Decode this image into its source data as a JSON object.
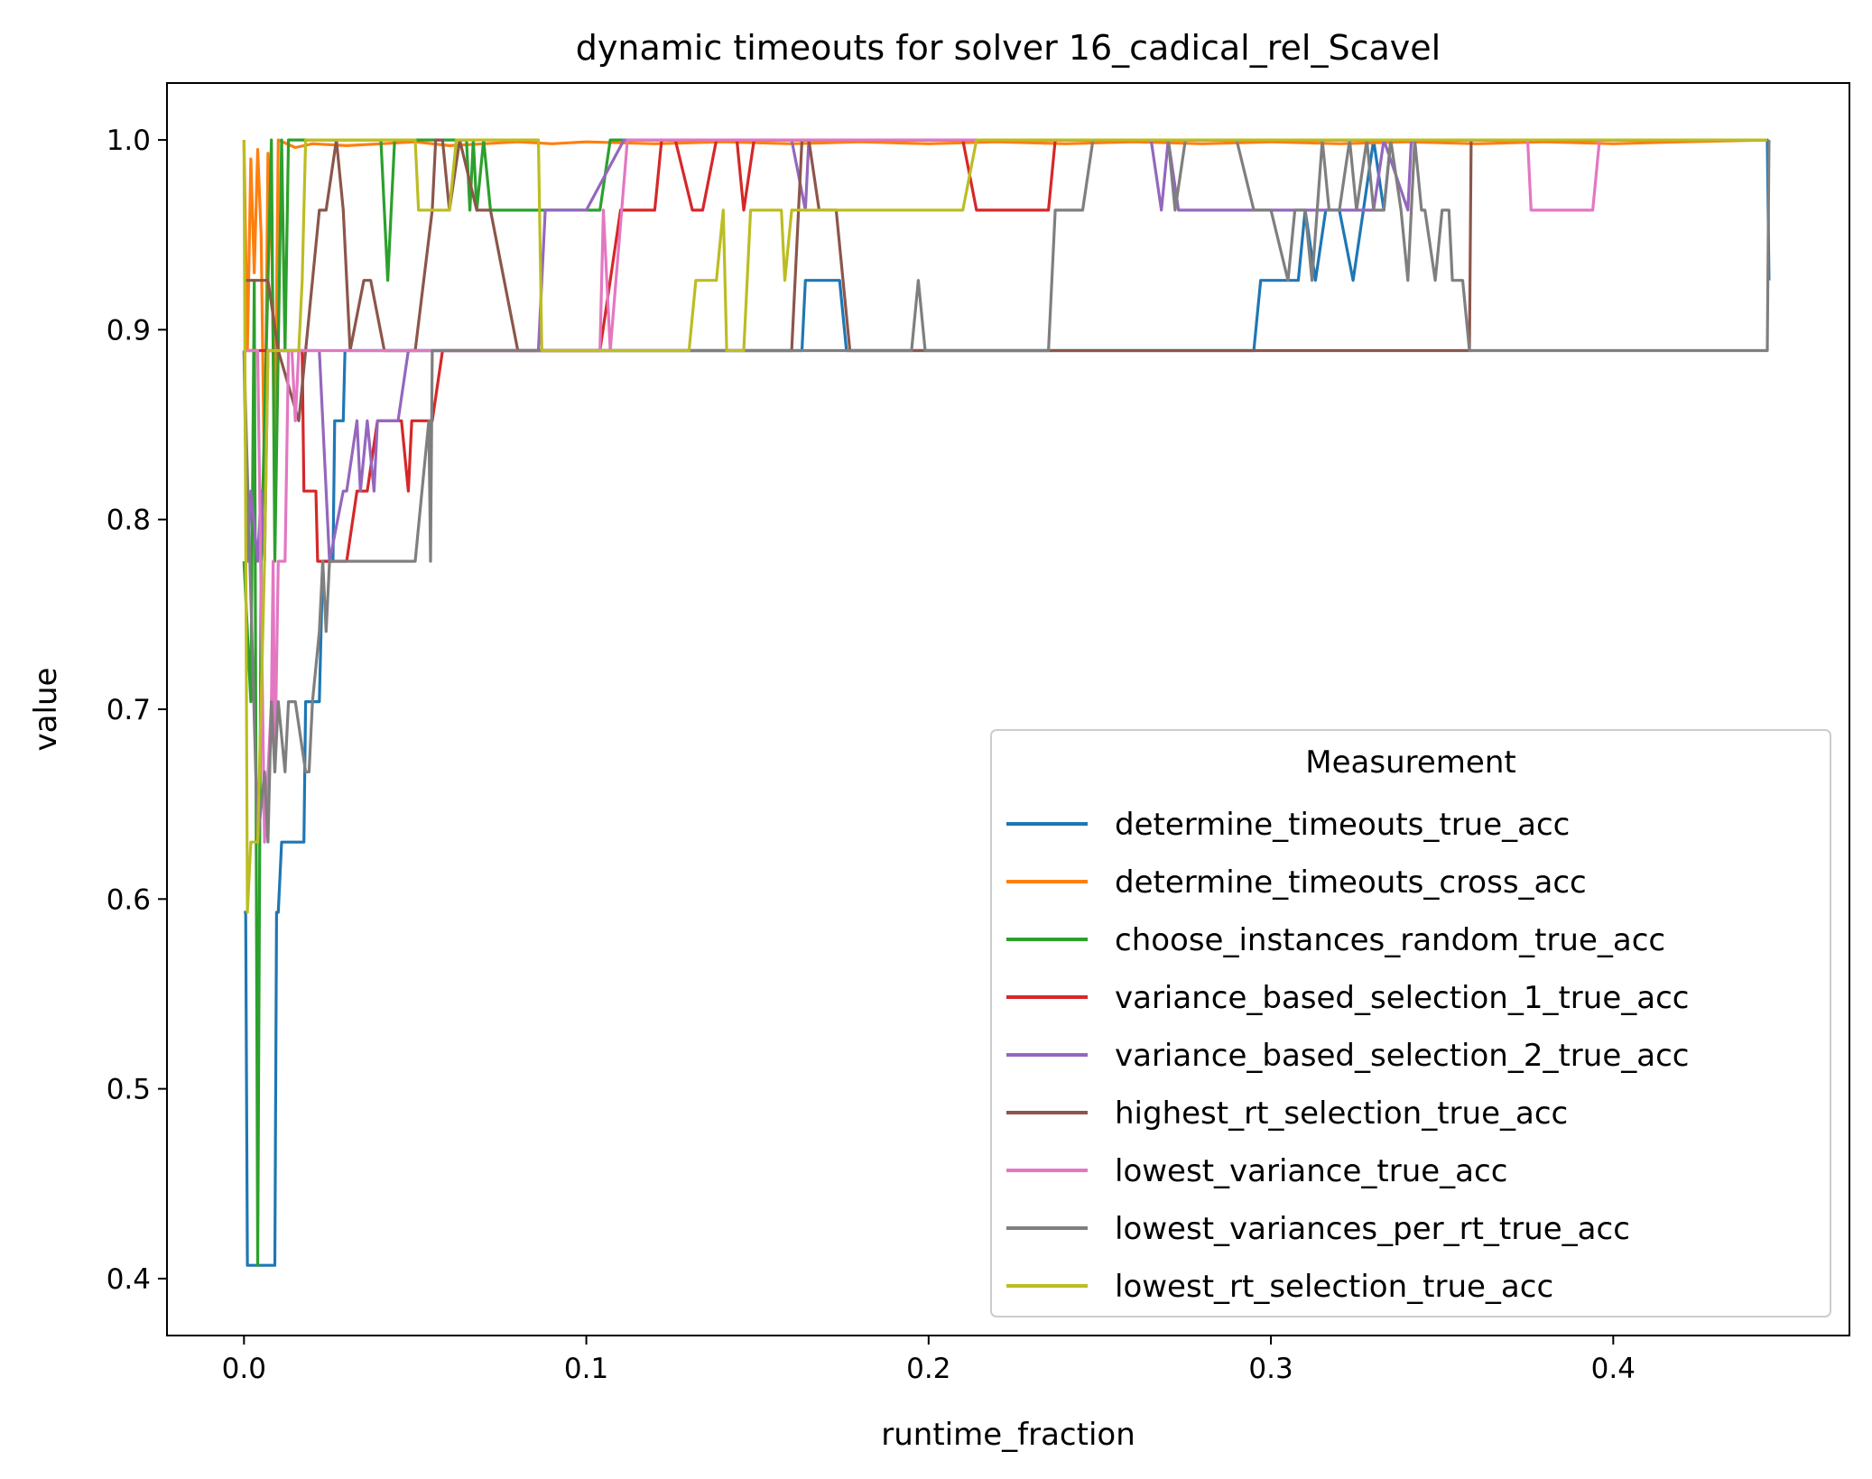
{
  "chart_data": {
    "type": "line",
    "title": "dynamic timeouts for solver 16_cadical_rel_Scavel",
    "xlabel": "runtime_fraction",
    "ylabel": "value",
    "xlim": [
      -0.0225,
      0.469
    ],
    "ylim": [
      0.37,
      1.03
    ],
    "xticks": [
      0.0,
      0.1,
      0.2,
      0.3,
      0.4
    ],
    "xtick_labels": [
      "0.0",
      "0.1",
      "0.2",
      "0.3",
      "0.4"
    ],
    "yticks": [
      0.4,
      0.5,
      0.6,
      0.7,
      0.8,
      0.9,
      1.0
    ],
    "ytick_labels": [
      "0.4",
      "0.5",
      "0.6",
      "0.7",
      "0.8",
      "0.9",
      "1.0"
    ],
    "grid": false,
    "legend": {
      "title": "Measurement",
      "position": "lower-right"
    },
    "series": [
      {
        "name": "determine_timeouts_true_acc",
        "color": "#1f77b4",
        "x": [
          0,
          0.0005,
          0.001,
          0.009,
          0.0095,
          0.01,
          0.011,
          0.017,
          0.0175,
          0.018,
          0.022,
          0.0225,
          0.023,
          0.026,
          0.0265,
          0.027,
          0.029,
          0.0295,
          0.03,
          0.058,
          0.163,
          0.164,
          0.17,
          0.174,
          0.176,
          0.295,
          0.297,
          0.3,
          0.308,
          0.31,
          0.313,
          0.316,
          0.32,
          0.324,
          0.327,
          0.33,
          0.333,
          0.335,
          0.337,
          0.445,
          0.4455
        ],
        "y": [
          0.593,
          0.593,
          0.407,
          0.407,
          0.593,
          0.593,
          0.63,
          0.63,
          0.63,
          0.704,
          0.704,
          0.741,
          0.778,
          0.778,
          0.852,
          0.852,
          0.852,
          0.889,
          0.889,
          0.889,
          0.889,
          0.926,
          0.926,
          0.926,
          0.889,
          0.889,
          0.926,
          0.926,
          0.926,
          0.963,
          0.926,
          0.963,
          0.963,
          0.926,
          0.963,
          1.0,
          0.963,
          1.0,
          1.0,
          1.0,
          0.926
        ]
      },
      {
        "name": "determine_timeouts_cross_acc",
        "color": "#ff7f0e",
        "x": [
          0,
          0.001,
          0.002,
          0.003,
          0.004,
          0.005,
          0.006,
          0.007,
          0.008,
          0.009,
          0.01,
          0.015,
          0.02,
          0.03,
          0.04,
          0.05,
          0.06,
          0.07,
          0.08,
          0.09,
          0.1,
          0.12,
          0.14,
          0.16,
          0.18,
          0.2,
          0.22,
          0.24,
          0.26,
          0.28,
          0.3,
          0.32,
          0.34,
          0.36,
          0.38,
          0.4,
          0.42,
          0.445
        ],
        "y": [
          1.0,
          0.889,
          0.99,
          0.93,
          0.995,
          0.95,
          0.815,
          0.993,
          0.96,
          0.83,
          1.0,
          0.996,
          0.998,
          0.997,
          0.998,
          0.999,
          0.997,
          0.998,
          0.999,
          0.998,
          0.999,
          0.998,
          0.999,
          0.998,
          0.999,
          0.998,
          0.999,
          0.998,
          0.999,
          0.998,
          0.999,
          0.998,
          0.999,
          0.998,
          0.999,
          0.998,
          0.999,
          1.0
        ]
      },
      {
        "name": "choose_instances_random_true_acc",
        "color": "#2ca02c",
        "x": [
          0,
          0.002,
          0.003,
          0.004,
          0.005,
          0.007,
          0.008,
          0.009,
          0.011,
          0.012,
          0.013,
          0.015,
          0.02,
          0.04,
          0.042,
          0.043,
          0.044,
          0.046,
          0.065,
          0.066,
          0.067,
          0.068,
          0.07,
          0.072,
          0.073,
          0.088,
          0.104,
          0.107,
          0.109,
          0.445
        ],
        "y": [
          0.778,
          0.704,
          0.926,
          0.407,
          0.778,
          0.926,
          1.0,
          0.778,
          1.0,
          0.889,
          1.0,
          1.0,
          1.0,
          1.0,
          0.926,
          0.963,
          1.0,
          1.0,
          1.0,
          0.963,
          1.0,
          0.963,
          1.0,
          0.963,
          0.963,
          0.963,
          0.963,
          1.0,
          1.0,
          1.0
        ]
      },
      {
        "name": "variance_based_selection_1_true_acc",
        "color": "#d62728",
        "x": [
          0,
          0.003,
          0.01,
          0.017,
          0.0175,
          0.021,
          0.0215,
          0.03,
          0.033,
          0.036,
          0.039,
          0.042,
          0.046,
          0.048,
          0.049,
          0.05,
          0.055,
          0.058,
          0.06,
          0.104,
          0.11,
          0.112,
          0.115,
          0.12,
          0.122,
          0.126,
          0.131,
          0.134,
          0.138,
          0.144,
          0.146,
          0.149,
          0.15,
          0.21,
          0.214,
          0.216,
          0.235,
          0.237,
          0.4,
          0.445
        ],
        "y": [
          0.889,
          0.889,
          0.889,
          0.889,
          0.815,
          0.815,
          0.778,
          0.778,
          0.815,
          0.815,
          0.852,
          0.852,
          0.852,
          0.815,
          0.852,
          0.852,
          0.852,
          0.889,
          0.889,
          0.889,
          0.963,
          0.963,
          0.963,
          0.963,
          1.0,
          1.0,
          0.963,
          0.963,
          1.0,
          1.0,
          0.963,
          1.0,
          1.0,
          1.0,
          0.963,
          0.963,
          0.963,
          1.0,
          1.0,
          1.0
        ]
      },
      {
        "name": "variance_based_selection_2_true_acc",
        "color": "#9467bd",
        "x": [
          0,
          0.001,
          0.002,
          0.004,
          0.005,
          0.006,
          0.007,
          0.022,
          0.025,
          0.029,
          0.03,
          0.033,
          0.034,
          0.036,
          0.038,
          0.039,
          0.043,
          0.045,
          0.048,
          0.052,
          0.086,
          0.088,
          0.1,
          0.111,
          0.16,
          0.164,
          0.165,
          0.167,
          0.168,
          0.19,
          0.191,
          0.265,
          0.268,
          0.27,
          0.273,
          0.275,
          0.33,
          0.333,
          0.34,
          0.341,
          0.343,
          0.445
        ],
        "y": [
          0.889,
          0.778,
          0.815,
          0.778,
          0.815,
          0.778,
          0.889,
          0.889,
          0.778,
          0.815,
          0.815,
          0.852,
          0.815,
          0.852,
          0.815,
          0.852,
          0.852,
          0.852,
          0.889,
          0.889,
          0.889,
          0.963,
          0.963,
          1.0,
          1.0,
          0.963,
          1.0,
          1.0,
          1.0,
          1.0,
          1.0,
          1.0,
          0.963,
          1.0,
          0.963,
          0.963,
          0.963,
          1.0,
          0.963,
          1.0,
          1.0,
          1.0
        ]
      },
      {
        "name": "highest_rt_selection_true_acc",
        "color": "#8c564b",
        "x": [
          0,
          0.007,
          0.01,
          0.016,
          0.02,
          0.022,
          0.024,
          0.027,
          0.029,
          0.031,
          0.035,
          0.037,
          0.041,
          0.05,
          0.055,
          0.056,
          0.058,
          0.06,
          0.063,
          0.068,
          0.072,
          0.08,
          0.085,
          0.088,
          0.16,
          0.163,
          0.165,
          0.168,
          0.173,
          0.177,
          0.18,
          0.2,
          0.3,
          0.358,
          0.3585,
          0.445
        ],
        "y": [
          0.926,
          0.926,
          0.889,
          0.852,
          0.926,
          0.963,
          0.963,
          1.0,
          0.963,
          0.889,
          0.926,
          0.926,
          0.889,
          0.889,
          0.963,
          1.0,
          1.0,
          0.963,
          1.0,
          0.963,
          0.963,
          0.889,
          0.889,
          0.889,
          0.889,
          1.0,
          1.0,
          0.963,
          0.963,
          0.889,
          0.889,
          0.889,
          0.889,
          0.889,
          1.0,
          1.0
        ]
      },
      {
        "name": "lowest_variance_true_acc",
        "color": "#e377c2",
        "x": [
          0,
          0.004,
          0.006,
          0.008,
          0.0085,
          0.009,
          0.01,
          0.012,
          0.013,
          0.014,
          0.015,
          0.016,
          0.018,
          0.02,
          0.025,
          0.05,
          0.1,
          0.104,
          0.105,
          0.107,
          0.112,
          0.2,
          0.3,
          0.375,
          0.376,
          0.394,
          0.396,
          0.445
        ],
        "y": [
          0.889,
          0.889,
          0.63,
          0.704,
          0.778,
          0.667,
          0.778,
          0.778,
          0.889,
          0.889,
          0.852,
          0.889,
          0.889,
          0.889,
          0.889,
          0.889,
          0.889,
          0.889,
          0.963,
          0.889,
          1.0,
          1.0,
          1.0,
          1.0,
          0.963,
          0.963,
          1.0,
          1.0
        ]
      },
      {
        "name": "lowest_variances_per_rt_true_acc",
        "color": "#7f7f7f",
        "x": [
          0,
          0.004,
          0.006,
          0.007,
          0.008,
          0.009,
          0.01,
          0.012,
          0.013,
          0.015,
          0.018,
          0.019,
          0.02,
          0.022,
          0.023,
          0.024,
          0.025,
          0.026,
          0.027,
          0.03,
          0.035,
          0.05,
          0.052,
          0.054,
          0.0545,
          0.055,
          0.058,
          0.06,
          0.195,
          0.197,
          0.199,
          0.235,
          0.237,
          0.245,
          0.248,
          0.27,
          0.272,
          0.275,
          0.28,
          0.29,
          0.295,
          0.3,
          0.305,
          0.307,
          0.31,
          0.312,
          0.315,
          0.317,
          0.32,
          0.323,
          0.325,
          0.328,
          0.33,
          0.333,
          0.335,
          0.338,
          0.34,
          0.342,
          0.344,
          0.345,
          0.348,
          0.35,
          0.352,
          0.353,
          0.356,
          0.358,
          0.36,
          0.363,
          0.445,
          0.4455
        ],
        "y": [
          0.889,
          0.63,
          0.667,
          0.63,
          0.704,
          0.667,
          0.704,
          0.667,
          0.704,
          0.704,
          0.667,
          0.667,
          0.704,
          0.741,
          0.778,
          0.741,
          0.778,
          0.778,
          0.778,
          0.778,
          0.778,
          0.778,
          0.815,
          0.852,
          0.778,
          0.889,
          0.889,
          0.889,
          0.889,
          0.926,
          0.889,
          0.889,
          0.963,
          0.963,
          1.0,
          1.0,
          0.963,
          1.0,
          1.0,
          1.0,
          0.963,
          0.963,
          0.926,
          0.963,
          0.963,
          0.926,
          1.0,
          0.963,
          0.963,
          1.0,
          0.963,
          1.0,
          0.963,
          0.963,
          1.0,
          0.963,
          0.926,
          1.0,
          0.963,
          0.963,
          0.926,
          0.963,
          0.963,
          0.926,
          0.926,
          0.889,
          0.889,
          0.889,
          0.889,
          1.0
        ]
      },
      {
        "name": "lowest_rt_selection_true_acc",
        "color": "#bcbd22",
        "x": [
          0,
          0.001,
          0.002,
          0.004,
          0.006,
          0.007,
          0.008,
          0.01,
          0.016,
          0.017,
          0.018,
          0.02,
          0.05,
          0.051,
          0.055,
          0.06,
          0.062,
          0.086,
          0.087,
          0.1,
          0.13,
          0.132,
          0.134,
          0.138,
          0.14,
          0.141,
          0.144,
          0.146,
          0.148,
          0.149,
          0.151,
          0.157,
          0.158,
          0.16,
          0.162,
          0.2,
          0.21,
          0.214,
          0.3,
          0.445
        ],
        "y": [
          1.0,
          0.593,
          0.63,
          0.63,
          0.778,
          0.889,
          0.889,
          0.889,
          0.889,
          0.926,
          1.0,
          1.0,
          1.0,
          0.963,
          0.963,
          0.963,
          1.0,
          1.0,
          0.889,
          0.889,
          0.889,
          0.926,
          0.926,
          0.926,
          0.963,
          0.889,
          0.889,
          0.889,
          0.963,
          0.963,
          0.963,
          0.963,
          0.926,
          0.963,
          0.963,
          0.963,
          0.963,
          1.0,
          1.0,
          1.0
        ]
      }
    ]
  }
}
